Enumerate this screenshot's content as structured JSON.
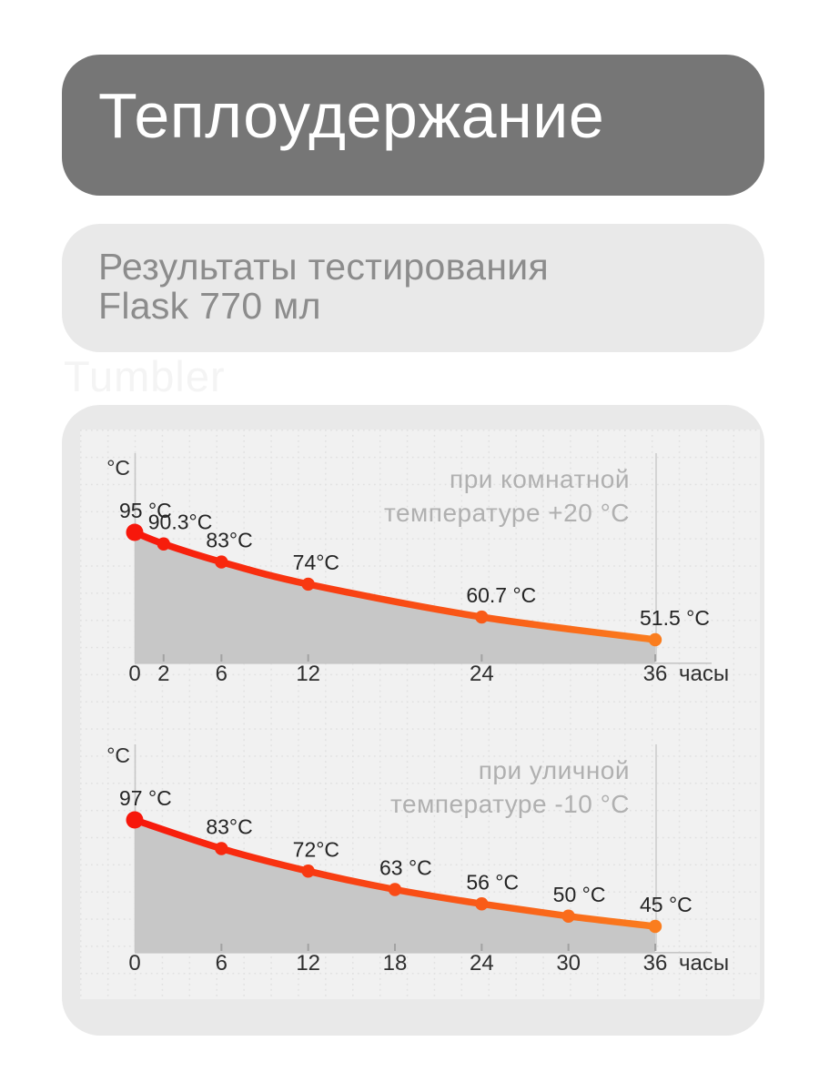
{
  "page": {
    "watermark": "Tumbler"
  },
  "title_card": {
    "title": "Теплоудержание"
  },
  "subtitle_card": {
    "line1": "Результаты тестирования",
    "line2": "Flask 770 мл"
  },
  "chart_data": [
    {
      "type": "line",
      "title_lines": [
        "при комнатной",
        "температуре +20 °C"
      ],
      "ylabel": "°C",
      "xlabel": "часы",
      "x_hours": [
        0,
        2,
        6,
        12,
        24,
        36
      ],
      "values_c": [
        95,
        90.3,
        83,
        74,
        60.7,
        51.5
      ],
      "point_labels": [
        "95 °C",
        "90.3°C",
        "83°C",
        "74°C",
        "60.7 °C",
        "51.5 °C"
      ],
      "x_tick_labels": [
        "0",
        "2",
        "6",
        "12",
        "24",
        "36"
      ],
      "x_range": [
        0,
        36
      ],
      "grid": true,
      "legend": "none"
    },
    {
      "type": "line",
      "title_lines": [
        "при уличной",
        "температуре -10 °C"
      ],
      "ylabel": "°C",
      "xlabel": "часы",
      "x_hours": [
        0,
        6,
        12,
        18,
        24,
        30,
        36
      ],
      "values_c": [
        97,
        83,
        72,
        63,
        56,
        50,
        45
      ],
      "point_labels": [
        "97 °C",
        "83°C",
        "72°C",
        "63 °C",
        "56 °C",
        "50 °C",
        "45 °C"
      ],
      "x_tick_labels": [
        "0",
        "6",
        "12",
        "18",
        "24",
        "30",
        "36"
      ],
      "x_range": [
        0,
        36
      ],
      "grid": true,
      "legend": "none"
    }
  ],
  "colors": {
    "curve_start": "#f7170b",
    "curve_end": "#fa7d1e",
    "area_fill": "#c7c7c7",
    "panel_bg": "#f1f1f1",
    "grid_line": "#e0e0e0",
    "axis_line": "#c6c6c6",
    "tick_mark": "#a2a2a2",
    "marker_line": "#d4d4d4",
    "label_text": "#242424",
    "tick_text": "#2f2f2f",
    "chart_title_text": "#b0b0b0",
    "title_card_bg": "#767676",
    "title_card_text": "#ffffff",
    "light_card_bg": "#e9e9e9",
    "subtitle_text": "#8c8c8c",
    "watermark_text": "#f4f4f4"
  }
}
